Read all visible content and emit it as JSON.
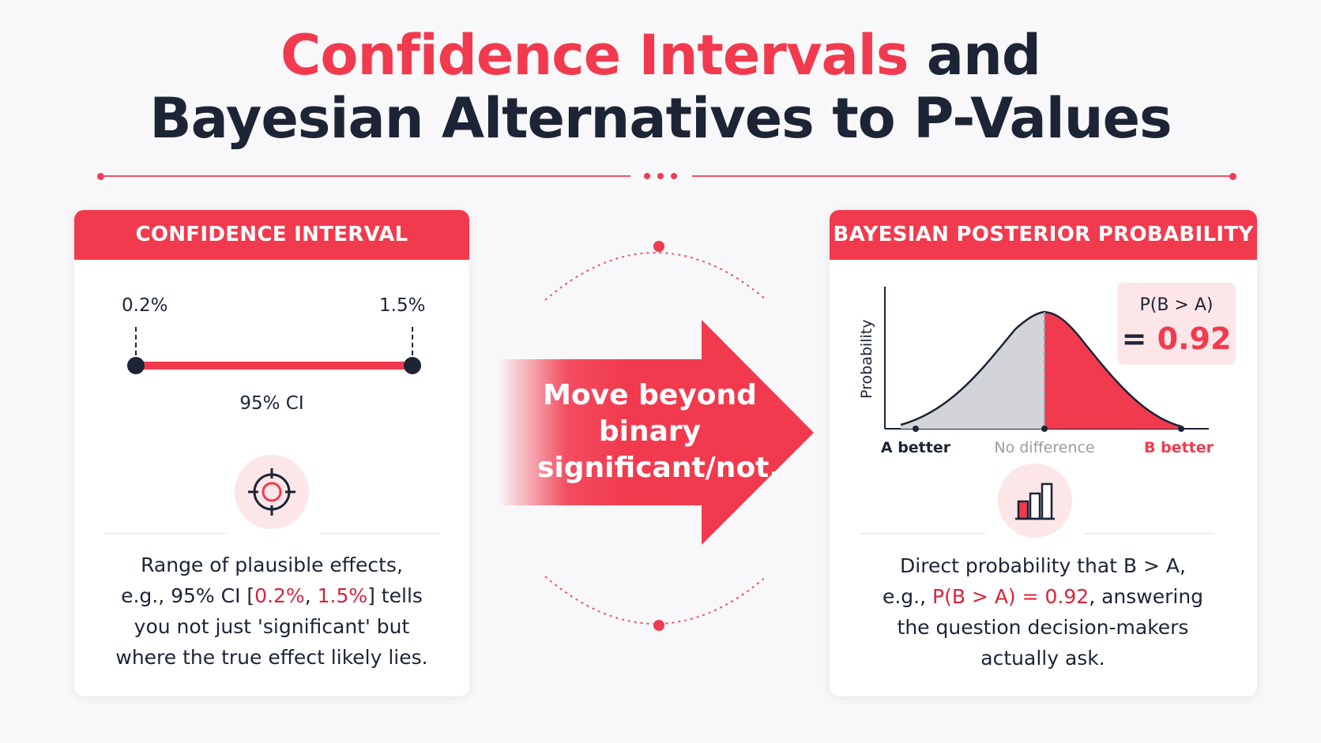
{
  "title": {
    "accent": "Confidence Intervals",
    "rest_line1": " and",
    "line2": "Bayesian Alternatives to P-Values"
  },
  "left_card": {
    "header": "CONFIDENCE INTERVAL",
    "ci_low": "0.2%",
    "ci_high": "1.5%",
    "ci_label": "95% CI",
    "icon": "target-icon",
    "desc_line1": "Range of plausible effects,",
    "desc_line2_pre": "e.g., 95% CI [",
    "desc_line2_low": "0.2%",
    "desc_line2_sep": ", ",
    "desc_line2_high": "1.5%",
    "desc_line2_post": "] tells",
    "desc_line3": "you not just 'significant' but",
    "desc_line4": "where the true effect likely lies."
  },
  "arrow": {
    "line1": "Move beyond",
    "line2": "binary",
    "line3": "significant/not."
  },
  "right_card": {
    "header": "BAYESIAN POSTERIOR PROBABILITY",
    "y_axis_label": "Probability",
    "x_left": "A better",
    "x_mid": "No difference",
    "x_right": "B better",
    "pbox_label": "P(B > A)",
    "pbox_eq": "= ",
    "pbox_value": "0.92",
    "icon": "bar-chart-icon",
    "desc_line1": "Direct probability that B > A,",
    "desc_line2_pre": "e.g., ",
    "desc_line2_hl": "P(B > A) = 0.92",
    "desc_line2_post": ", answering",
    "desc_line3": "the question decision-makers",
    "desc_line4": "actually ask."
  },
  "colors": {
    "accent": "#f23a4e",
    "dark": "#1c2436",
    "pink_bg": "#fde6e8",
    "gray_fill": "#d3d4d8"
  }
}
